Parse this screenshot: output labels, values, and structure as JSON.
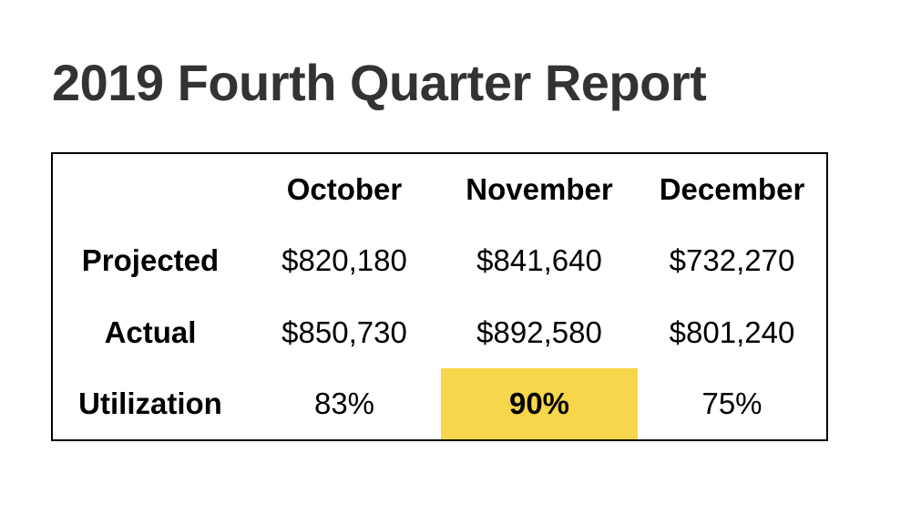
{
  "title": "2019 Fourth Quarter Report",
  "colors": {
    "page_background": "#ffffff",
    "title_text": "#333333",
    "table_text": "#000000",
    "table_border": "#000000",
    "highlight_background": "#F8D64B"
  },
  "table": {
    "columns": [
      "",
      "October",
      "November",
      "December"
    ],
    "rows": [
      {
        "label": "Projected",
        "values": [
          "$820,180",
          "$841,640",
          "$732,270"
        ]
      },
      {
        "label": "Actual",
        "values": [
          "$850,730",
          "$892,580",
          "$801,240"
        ]
      },
      {
        "label": "Utilization",
        "values": [
          "83%",
          "90%",
          "75%"
        ]
      }
    ],
    "highlighted_cell": {
      "row": "Utilization",
      "column": "November",
      "value": "90%"
    }
  }
}
